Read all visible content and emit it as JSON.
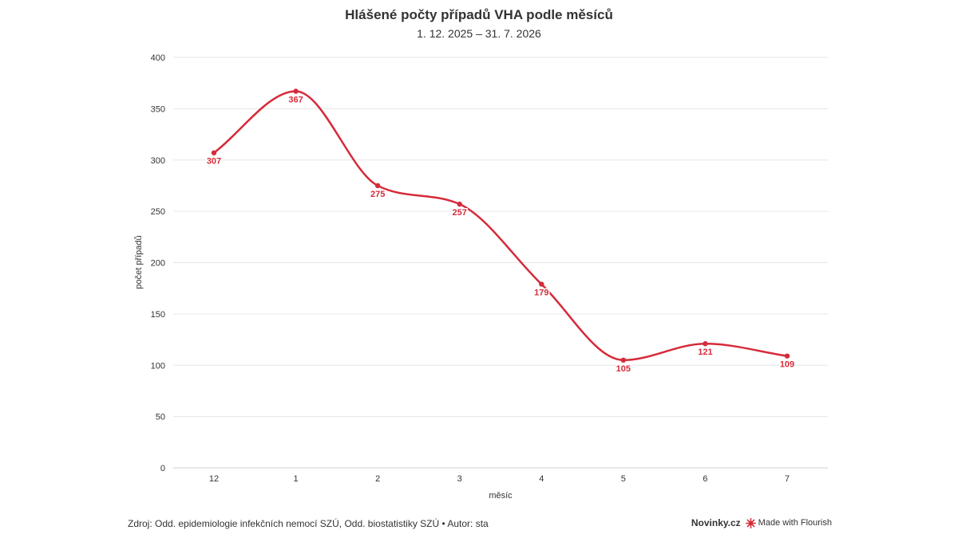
{
  "chart_data": {
    "type": "line",
    "title": "Hlášené počty případů VHA podle měsíců",
    "subtitle": "1. 12. 2025 – 31. 7. 2026",
    "categories": [
      "12",
      "1",
      "2",
      "3",
      "4",
      "5",
      "6",
      "7"
    ],
    "series": [
      {
        "values": [
          307,
          367,
          275,
          257,
          179,
          105,
          121,
          109
        ],
        "color": "#d52b3a"
      }
    ],
    "xlabel": "měsíc",
    "ylabel": "počet případů",
    "ylim": [
      0,
      400
    ],
    "yticks": [
      0,
      50,
      100,
      150,
      200,
      250,
      300,
      350,
      400
    ],
    "grid": true,
    "curve": "smooth",
    "data_labels": true
  },
  "footer": {
    "source": "Zdroj: Odd. epidemiologie infekčních nemocí SZÚ, Odd. biostatistiky SZÚ • Autor: sta",
    "brand": "Novinky.cz",
    "flourish": "Made with Flourish"
  },
  "colors": {
    "accent": "#d52b3a",
    "grid": "#e6e6e6",
    "text": "#333333"
  }
}
